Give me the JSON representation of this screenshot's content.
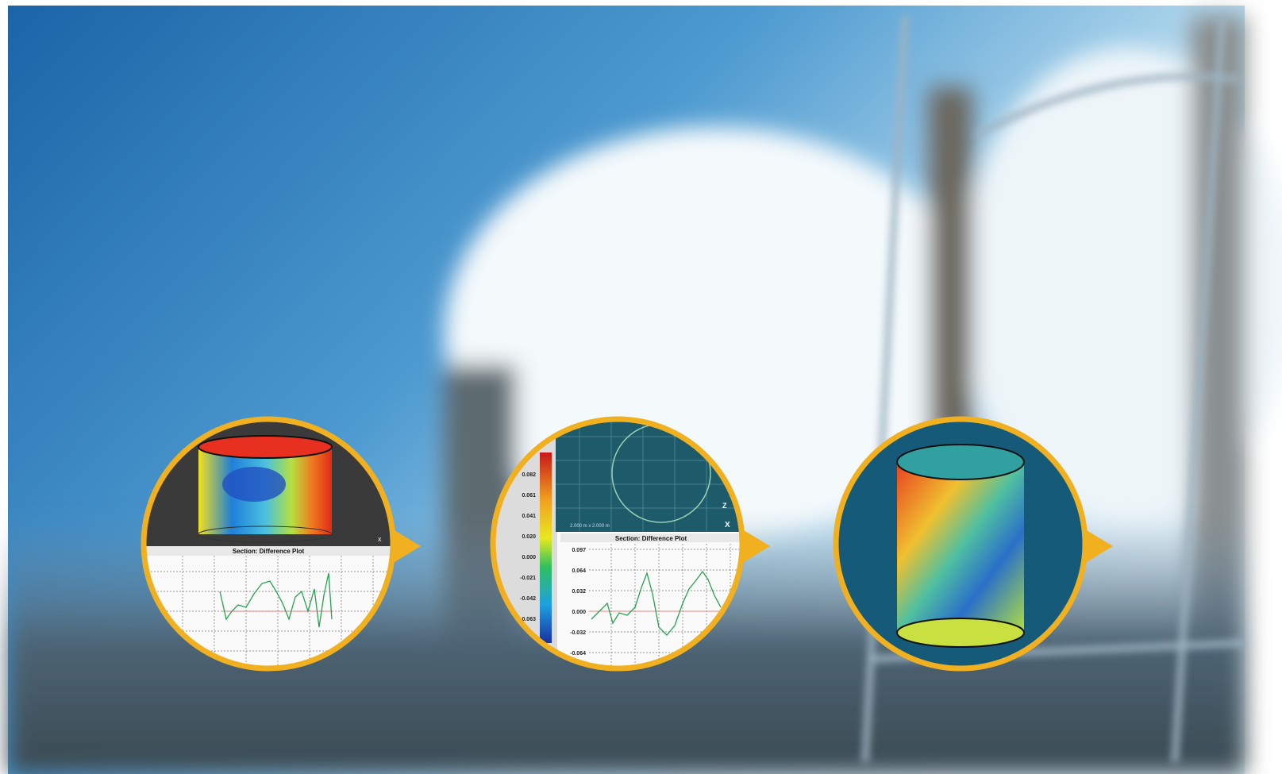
{
  "insets": [
    {
      "plot_title": "Section: Difference Plot",
      "axis_label": "x"
    },
    {
      "colorbar_labels": [
        "0.082",
        "0.061",
        "0.041",
        "0.020",
        "0.000",
        "-0.021",
        "-0.042",
        "-0.063"
      ],
      "scale_label": "2.000 m x 2.000 m",
      "axis_labels": [
        "Z",
        "X"
      ],
      "plot_title": "Section: Difference Plot",
      "y_labels": [
        "0.097",
        "0.064",
        "0.032",
        "0.000",
        "-0.032",
        "-0.064"
      ]
    },
    {}
  ]
}
